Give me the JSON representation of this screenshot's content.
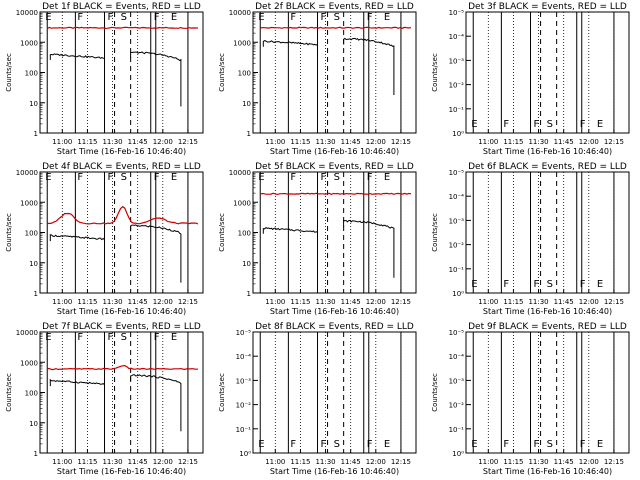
{
  "chart_data": [
    {
      "title": "Det 1f BLACK = Events, RED = LLD",
      "type": "line",
      "has_data": true,
      "events": [
        [
          11.25,
          400
        ],
        [
          11.88,
          460
        ],
        [
          12.15,
          380
        ]
      ],
      "lld": 3000
    },
    {
      "title": "Det 2f BLACK = Events, RED = LLD",
      "type": "line",
      "has_data": true,
      "events": [
        [
          11.25,
          1100
        ],
        [
          11.88,
          1300
        ],
        [
          12.15,
          900
        ]
      ],
      "lld": 3000
    },
    {
      "title": "Det 3f BLACK = Events, RED = LLD",
      "type": "line",
      "has_data": false
    },
    {
      "title": "Det 4f BLACK = Events, RED = LLD",
      "type": "line",
      "has_data": true,
      "events": [
        [
          11.25,
          80
        ],
        [
          11.88,
          170
        ],
        [
          12.15,
          110
        ]
      ],
      "lld": 200
    },
    {
      "title": "Det 5f BLACK = Events, RED = LLD",
      "type": "line",
      "has_data": true,
      "events": [
        [
          11.25,
          140
        ],
        [
          11.88,
          240
        ],
        [
          12.15,
          160
        ]
      ],
      "lld": 1900
    },
    {
      "title": "Det 6f BLACK = Events, RED = LLD",
      "type": "line",
      "has_data": false
    },
    {
      "title": "Det 7f BLACK = Events, RED = LLD",
      "type": "line",
      "has_data": true,
      "events": [
        [
          11.25,
          250
        ],
        [
          11.88,
          370
        ],
        [
          12.15,
          260
        ]
      ],
      "lld": 600
    },
    {
      "title": "Det 8f BLACK = Events, RED = LLD",
      "type": "line",
      "has_data": false
    },
    {
      "title": "Det 9f BLACK = Events, RED = LLD",
      "type": "line",
      "has_data": false
    }
  ],
  "axes": {
    "xlabel": "Start Time (16-Feb-16 10:46:40)",
    "ylabel": "Counts/sec",
    "xticks": [
      "11:00",
      "11:15",
      "11:30",
      "11:45",
      "12:00",
      "12:15"
    ],
    "xtick_values": [
      11.0,
      11.25,
      11.5,
      11.75,
      12.0,
      12.25
    ],
    "xlim": [
      10.778,
      12.4
    ],
    "ylim_data": [
      1,
      10000
    ],
    "ylabels_data": [
      "1",
      "10",
      "100",
      "1000",
      "10000"
    ],
    "ylim_empty": [
      1,
      1e-05
    ],
    "ylabels_empty": [
      "10⁰",
      "10⁻¹",
      "10⁻²",
      "10⁻³",
      "10⁻⁴",
      "10⁻⁵"
    ]
  },
  "markers": {
    "solid": [
      10.85,
      11.13,
      11.42,
      11.88,
      11.93,
      12.25
    ],
    "dashed": [
      11.52,
      11.68
    ],
    "dotted": [
      11.0,
      11.25,
      11.5,
      11.75,
      12.0,
      12.25
    ],
    "letters": [
      {
        "t": 10.8,
        "label": "E"
      },
      {
        "t": 11.12,
        "label": "F"
      },
      {
        "t": 11.42,
        "label": "F"
      },
      {
        "t": 11.55,
        "label": "S"
      },
      {
        "t": 11.88,
        "label": "F"
      },
      {
        "t": 12.05,
        "label": "E"
      }
    ]
  },
  "colors": {
    "events": "#000000",
    "lld": "#cc0000"
  }
}
